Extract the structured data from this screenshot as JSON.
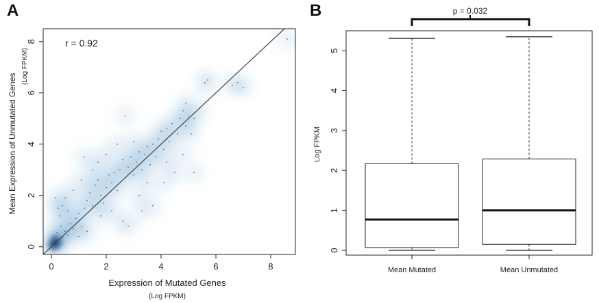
{
  "panels": {
    "a_label": "A",
    "b_label": "B"
  },
  "chart_data": [
    {
      "type": "scatter",
      "title": "",
      "annotation": "r = 0.92",
      "xlabel": "Expression of Mutated Genes",
      "xlabel_unit": "(Log FPKM)",
      "ylabel": "Mean Expression of Unmutated Genes",
      "ylabel_unit": "(Log FPKM)",
      "xlim": [
        -0.3,
        8.9
      ],
      "ylim": [
        -0.3,
        8.5
      ],
      "xticks": [
        0,
        2,
        4,
        6,
        8
      ],
      "yticks": [
        0,
        2,
        4,
        6,
        8
      ],
      "fit_line": {
        "from": [
          -0.3,
          -0.3
        ],
        "to": [
          8.5,
          8.5
        ]
      },
      "density_color": "#2b7bba",
      "points": [
        [
          0.05,
          0.02
        ],
        [
          0.1,
          0.08
        ],
        [
          0.15,
          0.05
        ],
        [
          0.2,
          0.15
        ],
        [
          0.05,
          0.2
        ],
        [
          0.25,
          0.3
        ],
        [
          0.3,
          0.12
        ],
        [
          0.4,
          0.35
        ],
        [
          0.1,
          0.4
        ],
        [
          0.5,
          0.6
        ],
        [
          0.6,
          0.45
        ],
        [
          0.2,
          0.55
        ],
        [
          0.35,
          0.8
        ],
        [
          0.7,
          0.9
        ],
        [
          0.8,
          0.7
        ],
        [
          0.3,
          1.2
        ],
        [
          0.9,
          1.1
        ],
        [
          1.0,
          1.3
        ],
        [
          1.1,
          0.8
        ],
        [
          1.2,
          1.5
        ],
        [
          0.4,
          1.6
        ],
        [
          0.15,
          1.9
        ],
        [
          0.5,
          1.9
        ],
        [
          0.25,
          1.5
        ],
        [
          1.3,
          1.8
        ],
        [
          1.5,
          1.6
        ],
        [
          1.4,
          2.1
        ],
        [
          1.6,
          2.4
        ],
        [
          1.8,
          2.0
        ],
        [
          1.7,
          2.6
        ],
        [
          1.9,
          1.7
        ],
        [
          2.0,
          2.3
        ],
        [
          2.1,
          2.8
        ],
        [
          2.2,
          2.5
        ],
        [
          2.3,
          2.9
        ],
        [
          2.4,
          2.2
        ],
        [
          2.5,
          3.0
        ],
        [
          2.6,
          3.4
        ],
        [
          2.7,
          2.7
        ],
        [
          2.8,
          3.1
        ],
        [
          2.9,
          3.5
        ],
        [
          3.0,
          2.8
        ],
        [
          3.1,
          3.3
        ],
        [
          3.2,
          3.7
        ],
        [
          3.3,
          3.0
        ],
        [
          3.4,
          3.6
        ],
        [
          3.5,
          3.9
        ],
        [
          3.6,
          3.2
        ],
        [
          3.7,
          4.0
        ],
        [
          3.8,
          3.5
        ],
        [
          3.9,
          4.2
        ],
        [
          4.0,
          4.5
        ],
        [
          4.1,
          3.8
        ],
        [
          4.2,
          4.6
        ],
        [
          4.3,
          4.1
        ],
        [
          4.4,
          4.8
        ],
        [
          4.6,
          4.4
        ],
        [
          4.7,
          5.0
        ],
        [
          4.8,
          5.3
        ],
        [
          4.9,
          4.7
        ],
        [
          5.0,
          5.1
        ],
        [
          5.2,
          5.0
        ],
        [
          5.4,
          5.4
        ],
        [
          2.7,
          5.1
        ],
        [
          1.2,
          3.5
        ],
        [
          2.0,
          3.6
        ],
        [
          1.5,
          3.0
        ],
        [
          0.8,
          2.2
        ],
        [
          1.1,
          2.6
        ],
        [
          3.3,
          1.4
        ],
        [
          3.2,
          2.0
        ],
        [
          4.1,
          2.5
        ],
        [
          4.5,
          2.9
        ],
        [
          5.2,
          2.9
        ],
        [
          2.6,
          1.0
        ],
        [
          2.8,
          0.8
        ],
        [
          3.7,
          1.6
        ],
        [
          4.8,
          3.6
        ],
        [
          5.6,
          6.4
        ],
        [
          5.7,
          6.5
        ],
        [
          6.6,
          6.3
        ],
        [
          6.8,
          6.4
        ],
        [
          7.0,
          6.2
        ],
        [
          8.6,
          8.1
        ],
        [
          3.5,
          2.5
        ],
        [
          4.2,
          3.3
        ],
        [
          1.8,
          1.2
        ],
        [
          2.2,
          1.4
        ],
        [
          1.0,
          0.4
        ],
        [
          1.3,
          0.6
        ],
        [
          0.6,
          1.4
        ],
        [
          2.4,
          4.0
        ],
        [
          3.0,
          4.1
        ],
        [
          1.7,
          3.3
        ],
        [
          4.9,
          5.6
        ],
        [
          5.1,
          4.4
        ]
      ]
    },
    {
      "type": "boxplot",
      "title": "",
      "ylabel": "Log FPKM",
      "ylim": [
        -0.12,
        5.5
      ],
      "yticks": [
        0,
        1,
        2,
        3,
        4,
        5
      ],
      "significance": "p = 0.032",
      "categories": [
        "Mean Mutated",
        "Mean Unmutated"
      ],
      "boxes": [
        {
          "name": "Mean Mutated",
          "min": 0.0,
          "q1": 0.07,
          "median": 0.77,
          "q3": 2.17,
          "max": 5.31
        },
        {
          "name": "Mean Unmutated",
          "min": 0.0,
          "q1": 0.15,
          "median": 1.0,
          "q3": 2.29,
          "max": 5.35
        }
      ]
    }
  ]
}
